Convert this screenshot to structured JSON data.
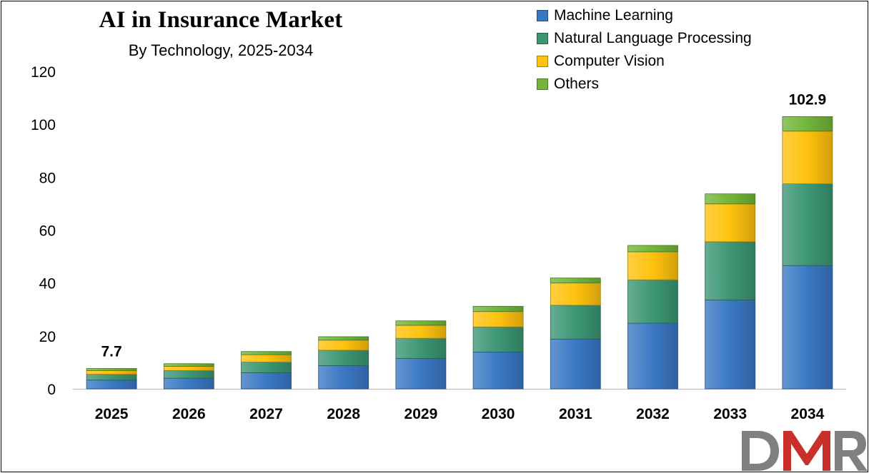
{
  "chart_data": {
    "type": "bar",
    "stacked": true,
    "title": "AI in Insurance Market",
    "subtitle": "By Technology,  2025-2034",
    "xlabel": "",
    "ylabel": "",
    "ylim": [
      0,
      120
    ],
    "yticks": [
      "0",
      "20",
      "40",
      "60",
      "80",
      "100",
      "120"
    ],
    "grid": false,
    "legend_position": "top-right",
    "categories": [
      "2025",
      "2026",
      "2027",
      "2028",
      "2029",
      "2030",
      "2031",
      "2032",
      "2033",
      "2034"
    ],
    "series": [
      {
        "name": "Machine Learning",
        "color": "#3a78c4",
        "values": [
          3.3,
          4.0,
          6.1,
          8.8,
          11.5,
          13.9,
          18.8,
          24.8,
          33.6,
          46.6
        ]
      },
      {
        "name": "Natural Language Processing",
        "color": "#3c9674",
        "values": [
          2.2,
          2.9,
          4.0,
          5.8,
          7.6,
          9.5,
          12.8,
          16.4,
          22.0,
          30.9
        ]
      },
      {
        "name": "Computer Vision",
        "color": "#ffc20e",
        "values": [
          1.4,
          1.6,
          2.8,
          3.8,
          4.9,
          5.8,
          8.4,
          10.6,
          14.3,
          19.9
        ]
      },
      {
        "name": "Others",
        "color": "#72b53a",
        "values": [
          0.8,
          1.0,
          1.2,
          1.3,
          1.7,
          2.0,
          1.9,
          2.4,
          3.8,
          5.5
        ]
      }
    ],
    "data_labels": [
      {
        "category": "2025",
        "text": "7.7"
      },
      {
        "category": "2034",
        "text": "102.9"
      }
    ]
  },
  "logo": {
    "text": "DMR",
    "colors": [
      "#808080",
      "#c9302c"
    ]
  }
}
